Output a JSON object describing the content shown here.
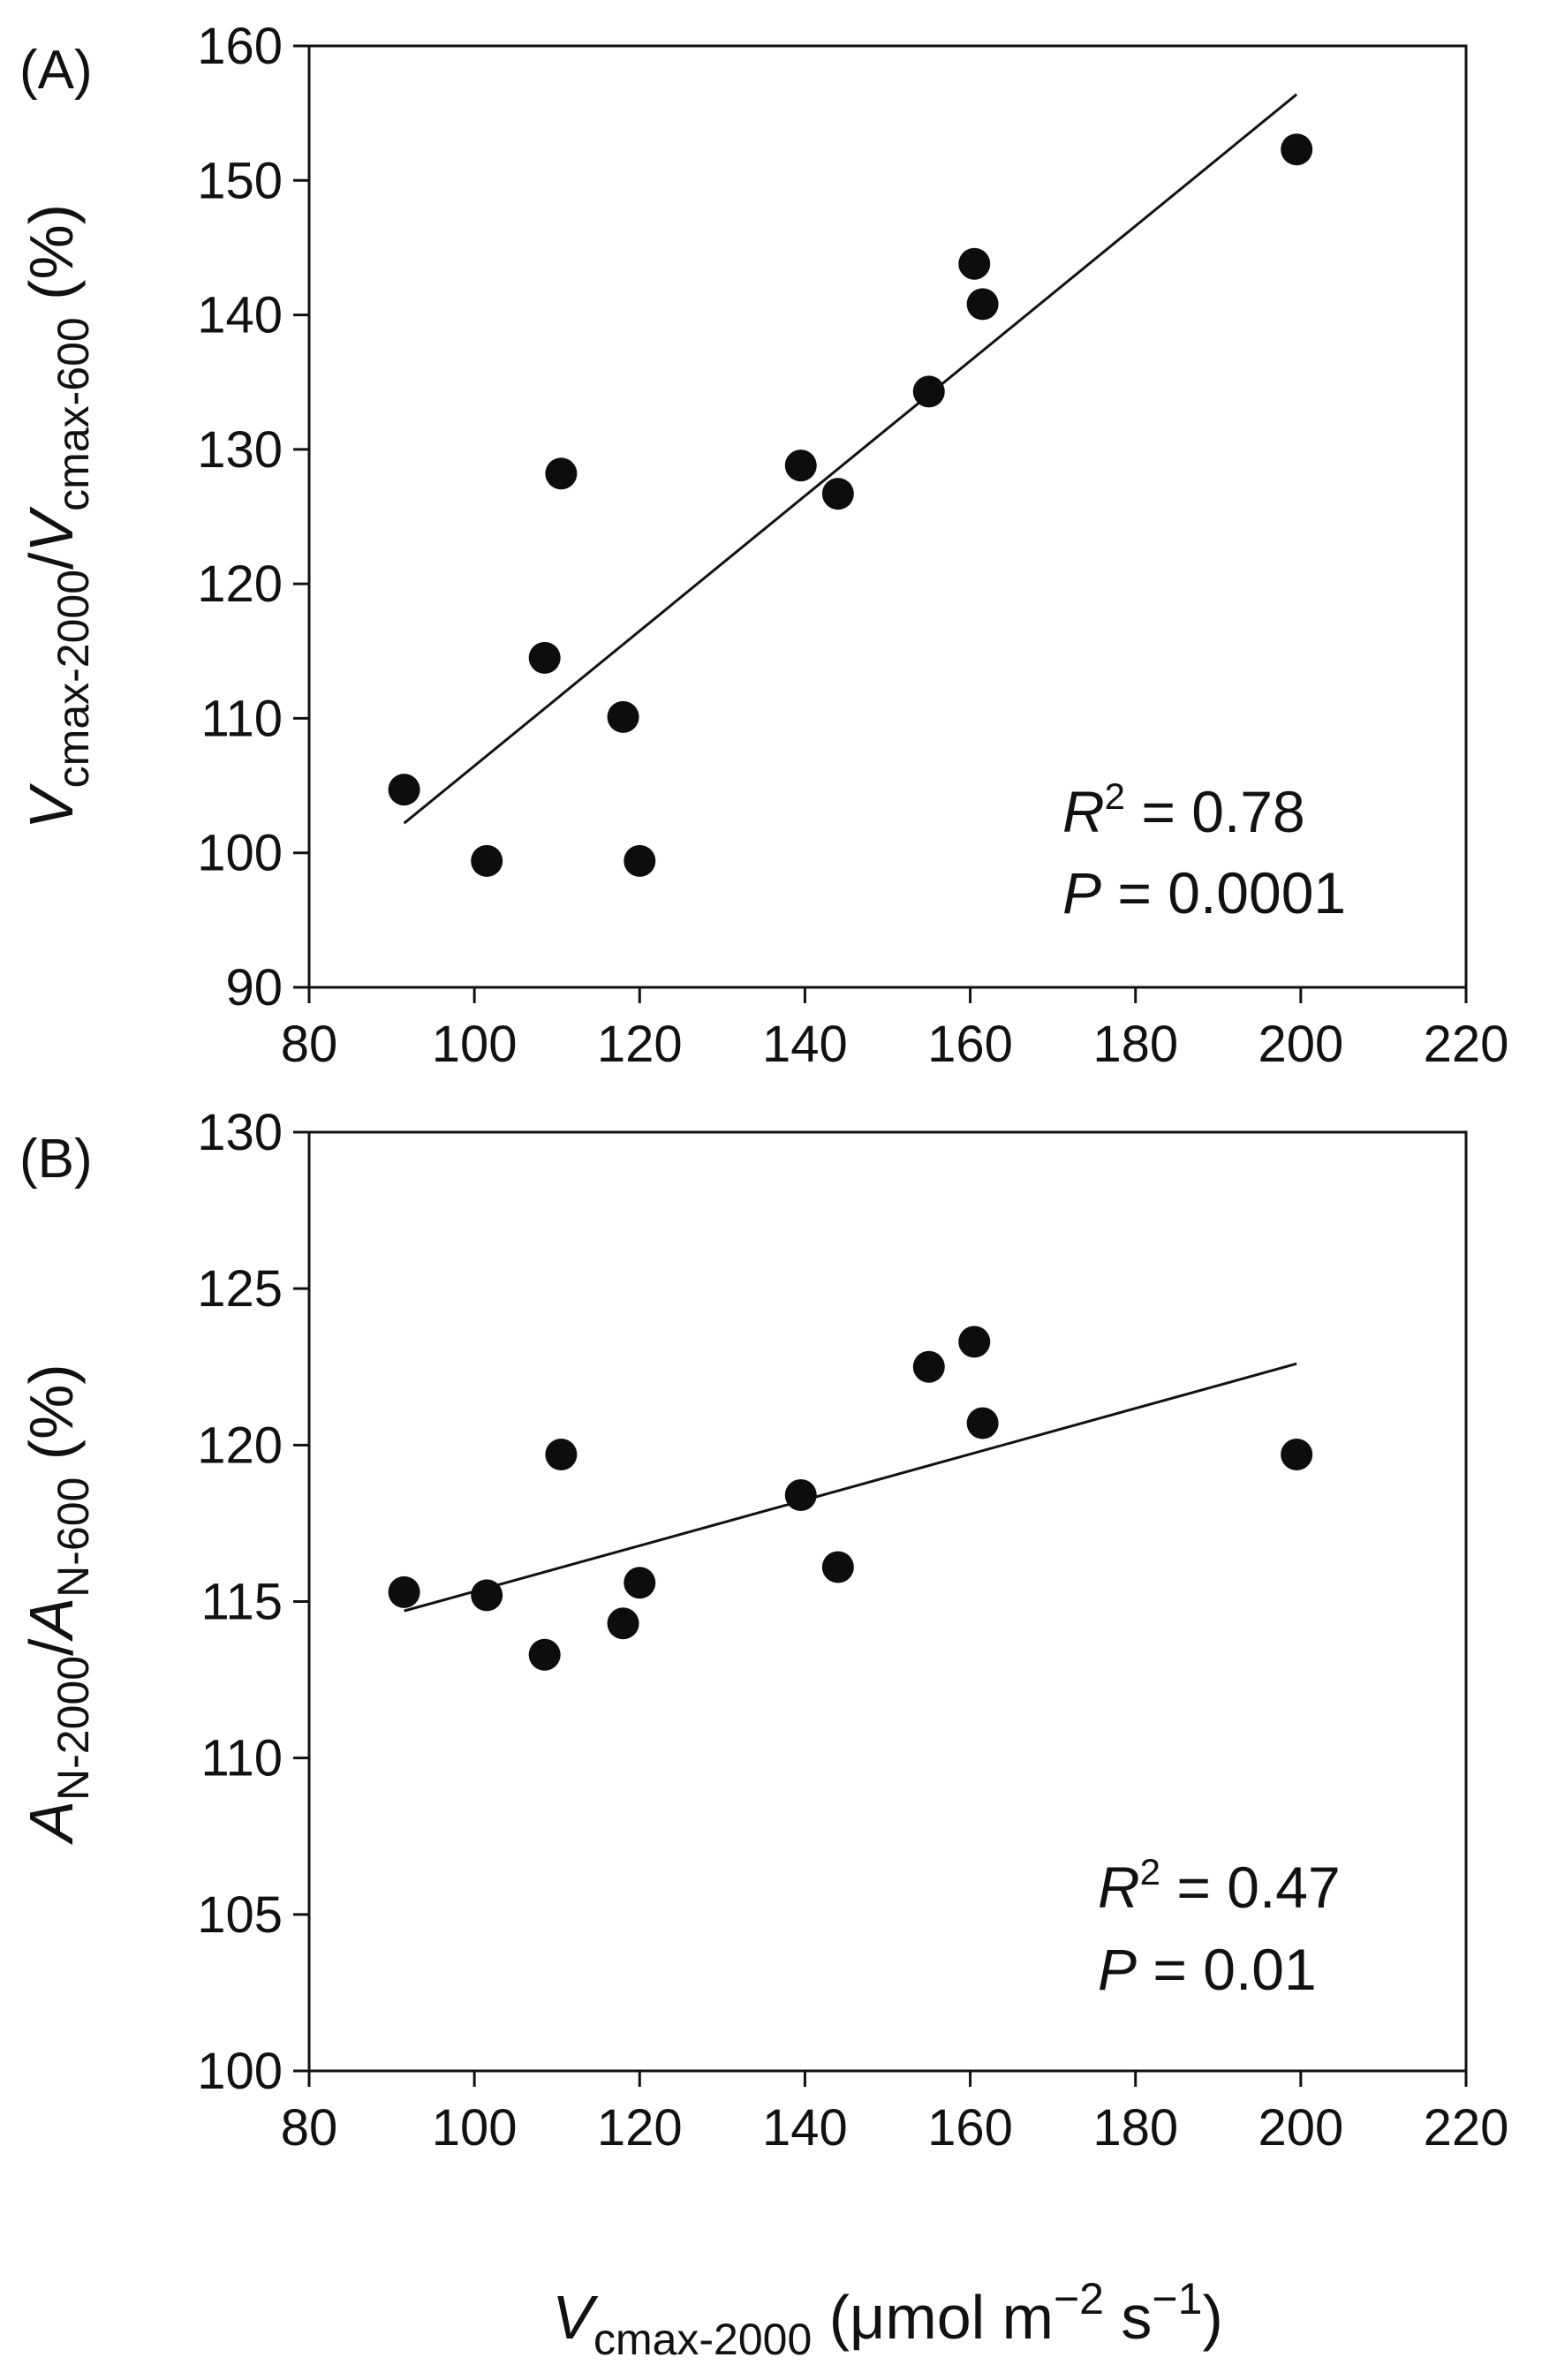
{
  "chart_data": [
    {
      "type": "scatter",
      "panel_label": "(A)",
      "x": [
        91.5,
        101.5,
        108.5,
        110.5,
        118,
        120,
        139.5,
        144,
        155,
        160.5,
        161.5,
        199.5
      ],
      "y": [
        104.7,
        99.4,
        114.5,
        128.2,
        110.1,
        99.4,
        128.8,
        126.7,
        134.3,
        143.8,
        140.8,
        152.3
      ],
      "fit_line": {
        "x": [
          91.5,
          199.5
        ],
        "y": [
          102.2,
          156.4
        ]
      },
      "xlim": [
        80,
        220
      ],
      "ylim": [
        90,
        160
      ],
      "xticks": [
        "80",
        "100",
        "120",
        "140",
        "160",
        "180",
        "200",
        "220"
      ],
      "yticks": [
        "90",
        "100",
        "110",
        "120",
        "130",
        "140",
        "150",
        "160"
      ],
      "ylabel": {
        "main": "V",
        "sub1": "cmax-2000",
        "slash": "/",
        "main2": "V",
        "sub2": "cmax-600",
        "unit": " (%)"
      },
      "stats": {
        "r2_symbol": "R",
        "r2_sup": "2",
        "r2_value": " = 0.78",
        "p_symbol": "P",
        "p_value": " = 0.0001"
      }
    },
    {
      "type": "scatter",
      "panel_label": "(B)",
      "x": [
        91.5,
        101.5,
        108.5,
        110.5,
        118,
        120,
        139.5,
        144,
        155,
        160.5,
        161.5,
        199.5
      ],
      "y": [
        115.3,
        115.2,
        113.3,
        119.7,
        114.3,
        115.6,
        118.4,
        116.1,
        122.5,
        123.3,
        120.7,
        119.7
      ],
      "fit_line": {
        "x": [
          91.5,
          199.5
        ],
        "y": [
          114.7,
          122.6
        ]
      },
      "xlim": [
        80,
        220
      ],
      "ylim": [
        100,
        130
      ],
      "xticks": [
        "80",
        "100",
        "120",
        "140",
        "160",
        "180",
        "200",
        "220"
      ],
      "yticks": [
        "100",
        "105",
        "110",
        "115",
        "120",
        "125",
        "130"
      ],
      "ylabel": {
        "main": "A",
        "sub1": "N-2000",
        "slash": "/",
        "main2": "A",
        "sub2": "N-600",
        "unit": " (%)"
      },
      "stats": {
        "r2_symbol": "R",
        "r2_sup": "2",
        "r2_value": " = 0.47",
        "p_symbol": "P",
        "p_value": " = 0.01"
      }
    }
  ],
  "xlabel": {
    "main": "V",
    "sub": "cmax-2000",
    "unit": " (μmol m",
    "exp1": "−2",
    "mid": " s",
    "exp2": "−1",
    "close": ")"
  }
}
